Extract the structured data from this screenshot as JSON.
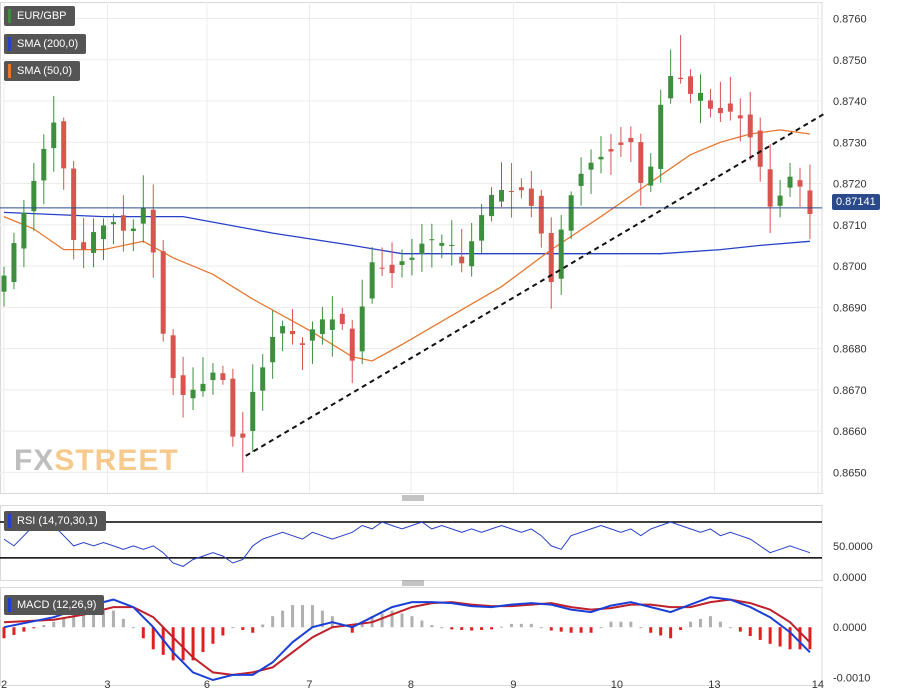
{
  "legend": {
    "symbol": "EUR/GBP",
    "sma200": "SMA (200,0)",
    "sma50": "SMA (50,0)",
    "rsi": "RSI (14,70,30,1)",
    "macd": "MACD (12,26,9)"
  },
  "logo": {
    "fx": "FX",
    "street": "STREET"
  },
  "colors": {
    "up": "#3d8f3d",
    "down": "#d9534f",
    "sma200": "#2640c8",
    "sma50": "#e8772e",
    "current_price_line": "#2a4a8c",
    "macd_line": "#1a3fd6",
    "signal_line": "#c0202a",
    "hist_positive": "#b0b0b0",
    "hist_negative": "#e02020"
  },
  "chart_data": [
    {
      "type": "candlestick",
      "title": "EUR/GBP",
      "x_ticks": [
        "2",
        "3",
        "6",
        "7",
        "8",
        "9",
        "10",
        "13",
        "14"
      ],
      "y_ticks": [
        "0.8650",
        "0.8660",
        "0.8670",
        "0.8680",
        "0.8690",
        "0.8700",
        "0.8710",
        "0.8720",
        "0.8730",
        "0.8740",
        "0.8750",
        "0.8760"
      ],
      "ylim": [
        0.8645,
        0.8764
      ],
      "current_price": 0.87141,
      "current_price_label": "0.87141",
      "grid": true,
      "legend_position": "top-left",
      "price_path_keypoints": [
        [
          0.0,
          0.8693
        ],
        [
          3.0,
          0.8718
        ],
        [
          5.0,
          0.8733
        ],
        [
          6.0,
          0.8735
        ],
        [
          7.0,
          0.8712
        ],
        [
          8.0,
          0.8702
        ],
        [
          10.0,
          0.871
        ],
        [
          12.0,
          0.8712
        ],
        [
          13.0,
          0.8706
        ],
        [
          14.0,
          0.8714
        ],
        [
          15.0,
          0.8715
        ],
        [
          15.7,
          0.87
        ],
        [
          16.5,
          0.8683
        ],
        [
          18.0,
          0.8668
        ],
        [
          20.0,
          0.8672
        ],
        [
          22.0,
          0.8675
        ],
        [
          22.7,
          0.867
        ],
        [
          23.5,
          0.8658
        ],
        [
          24.0,
          0.8653
        ],
        [
          25.5,
          0.867
        ],
        [
          27.0,
          0.868
        ],
        [
          28.0,
          0.8686
        ],
        [
          30.0,
          0.8681
        ],
        [
          32.0,
          0.8685
        ],
        [
          34.0,
          0.8688
        ],
        [
          35.5,
          0.8678
        ],
        [
          37.0,
          0.8698
        ],
        [
          38.0,
          0.8702
        ],
        [
          39.0,
          0.8698
        ],
        [
          41.0,
          0.8702
        ],
        [
          43.0,
          0.8706
        ],
        [
          45.0,
          0.8705
        ],
        [
          47.0,
          0.87
        ],
        [
          48.0,
          0.8712
        ],
        [
          50.0,
          0.8718
        ],
        [
          52.0,
          0.8718
        ],
        [
          53.5,
          0.8716
        ],
        [
          55.0,
          0.8702
        ],
        [
          55.7,
          0.8695
        ],
        [
          56.5,
          0.871
        ],
        [
          58.0,
          0.8722
        ],
        [
          60.0,
          0.8726
        ],
        [
          62.0,
          0.873
        ],
        [
          63.5,
          0.8731
        ],
        [
          64.5,
          0.872
        ],
        [
          65.3,
          0.8718
        ],
        [
          66.0,
          0.8735
        ],
        [
          67.0,
          0.8745
        ],
        [
          68.0,
          0.8748
        ],
        [
          69.0,
          0.8742
        ],
        [
          71.0,
          0.874
        ],
        [
          73.0,
          0.8738
        ],
        [
          75.0,
          0.8736
        ],
        [
          76.0,
          0.8728
        ],
        [
          77.0,
          0.8718
        ],
        [
          77.7,
          0.8712
        ],
        [
          79.0,
          0.8722
        ],
        [
          80.5,
          0.8718
        ],
        [
          81.0,
          0.8714
        ]
      ],
      "candle_count": 82,
      "sma200": [
        [
          0,
          0.8713
        ],
        [
          10,
          0.8712
        ],
        [
          18,
          0.8712
        ],
        [
          27,
          0.8708
        ],
        [
          35,
          0.8705
        ],
        [
          40,
          0.8703
        ],
        [
          50,
          0.8703
        ],
        [
          60,
          0.8703
        ],
        [
          66,
          0.8703
        ],
        [
          72,
          0.8704
        ],
        [
          76,
          0.8705
        ],
        [
          81,
          0.8706
        ]
      ],
      "sma50": [
        [
          0,
          0.8712
        ],
        [
          3,
          0.8709
        ],
        [
          6,
          0.8704
        ],
        [
          10,
          0.8704
        ],
        [
          14,
          0.8706
        ],
        [
          17,
          0.8702
        ],
        [
          21,
          0.8698
        ],
        [
          25,
          0.8692
        ],
        [
          28,
          0.8688
        ],
        [
          31,
          0.8684
        ],
        [
          35,
          0.8678
        ],
        [
          37,
          0.8677
        ],
        [
          40,
          0.8681
        ],
        [
          45,
          0.8688
        ],
        [
          50,
          0.8695
        ],
        [
          55,
          0.8704
        ],
        [
          60,
          0.8712
        ],
        [
          63,
          0.8717
        ],
        [
          66,
          0.8722
        ],
        [
          69,
          0.8727
        ],
        [
          72,
          0.873
        ],
        [
          75,
          0.8732
        ],
        [
          78,
          0.8733
        ],
        [
          81,
          0.8732
        ]
      ],
      "trendline": [
        [
          24.3,
          0.8654
        ],
        [
          82.5,
          0.8737
        ]
      ]
    },
    {
      "type": "line",
      "title": "RSI (14,70,30,1)",
      "y_ticks": [
        "50.0000"
      ],
      "ylim": [
        40,
        62
      ],
      "bands": [
        57.0,
        46.5
      ],
      "series_values": [
        52,
        50,
        53,
        56,
        58,
        56,
        53,
        50,
        51,
        50,
        51,
        50,
        49,
        50,
        49,
        50,
        48,
        45,
        44,
        46,
        47,
        48,
        47,
        45,
        46,
        50,
        52,
        53,
        54,
        53,
        52,
        54,
        53,
        52,
        53,
        54,
        56,
        55,
        57,
        56,
        55,
        56,
        57,
        55,
        56,
        55,
        54,
        55,
        54,
        55,
        56,
        55,
        54,
        55,
        53,
        50,
        49,
        53,
        54,
        55,
        56,
        55,
        54,
        55,
        53,
        55,
        56,
        57,
        56,
        55,
        54,
        55,
        53,
        54,
        53,
        52,
        50,
        48,
        49,
        50,
        49,
        48
      ]
    },
    {
      "type": "macd",
      "title": "MACD (12,26,9)",
      "y_ticks": [
        "0.0000",
        "-0.0010"
      ],
      "ylim": [
        -0.00115,
        0.0008
      ],
      "macd": [
        [
          0,
          0.0
        ],
        [
          5,
          0.0002
        ],
        [
          8,
          0.0004
        ],
        [
          11,
          0.00055
        ],
        [
          13,
          0.0004
        ],
        [
          15,
          0.0
        ],
        [
          17,
          -0.0005
        ],
        [
          19,
          -0.0009
        ],
        [
          21,
          -0.00105
        ],
        [
          23,
          -0.00095
        ],
        [
          25,
          -0.00095
        ],
        [
          27,
          -0.0007
        ],
        [
          29,
          -0.0003
        ],
        [
          31,
          0.0
        ],
        [
          33,
          0.0001
        ],
        [
          35,
          0.0
        ],
        [
          37,
          0.0002
        ],
        [
          39,
          0.0004
        ],
        [
          41,
          0.0005
        ],
        [
          43,
          0.0005
        ],
        [
          45,
          0.00048
        ],
        [
          47,
          0.00042
        ],
        [
          49,
          0.0004
        ],
        [
          51,
          0.00045
        ],
        [
          53,
          0.00048
        ],
        [
          55,
          0.00045
        ],
        [
          57,
          0.00035
        ],
        [
          59,
          0.0003
        ],
        [
          61,
          0.00043
        ],
        [
          63,
          0.0005
        ],
        [
          65,
          0.0004
        ],
        [
          67,
          0.0003
        ],
        [
          69,
          0.00045
        ],
        [
          71,
          0.0006
        ],
        [
          73,
          0.00055
        ],
        [
          75,
          0.0004
        ],
        [
          77,
          0.0002
        ],
        [
          79,
          -0.0001
        ],
        [
          81,
          -0.0005
        ]
      ],
      "signal": [
        [
          0,
          0.0001
        ],
        [
          5,
          0.00015
        ],
        [
          8,
          0.00025
        ],
        [
          11,
          0.0004
        ],
        [
          13,
          0.0004
        ],
        [
          15,
          0.0002
        ],
        [
          17,
          -0.0002
        ],
        [
          19,
          -0.0006
        ],
        [
          21,
          -0.0009
        ],
        [
          23,
          -0.00095
        ],
        [
          25,
          -0.0009
        ],
        [
          27,
          -0.0008
        ],
        [
          29,
          -0.0005
        ],
        [
          31,
          -0.0002
        ],
        [
          33,
          0.0
        ],
        [
          35,
          5e-05
        ],
        [
          37,
          0.0001
        ],
        [
          39,
          0.00025
        ],
        [
          41,
          0.0004
        ],
        [
          43,
          0.00048
        ],
        [
          45,
          0.0005
        ],
        [
          47,
          0.00045
        ],
        [
          49,
          0.00042
        ],
        [
          51,
          0.00042
        ],
        [
          53,
          0.00045
        ],
        [
          55,
          0.00048
        ],
        [
          57,
          0.0004
        ],
        [
          59,
          0.00035
        ],
        [
          61,
          0.00038
        ],
        [
          63,
          0.00045
        ],
        [
          65,
          0.00045
        ],
        [
          67,
          0.0004
        ],
        [
          69,
          0.0004
        ],
        [
          71,
          0.0005
        ],
        [
          73,
          0.00055
        ],
        [
          75,
          0.00048
        ],
        [
          77,
          0.00035
        ],
        [
          79,
          0.0001
        ],
        [
          81,
          -0.0003
        ]
      ]
    }
  ]
}
